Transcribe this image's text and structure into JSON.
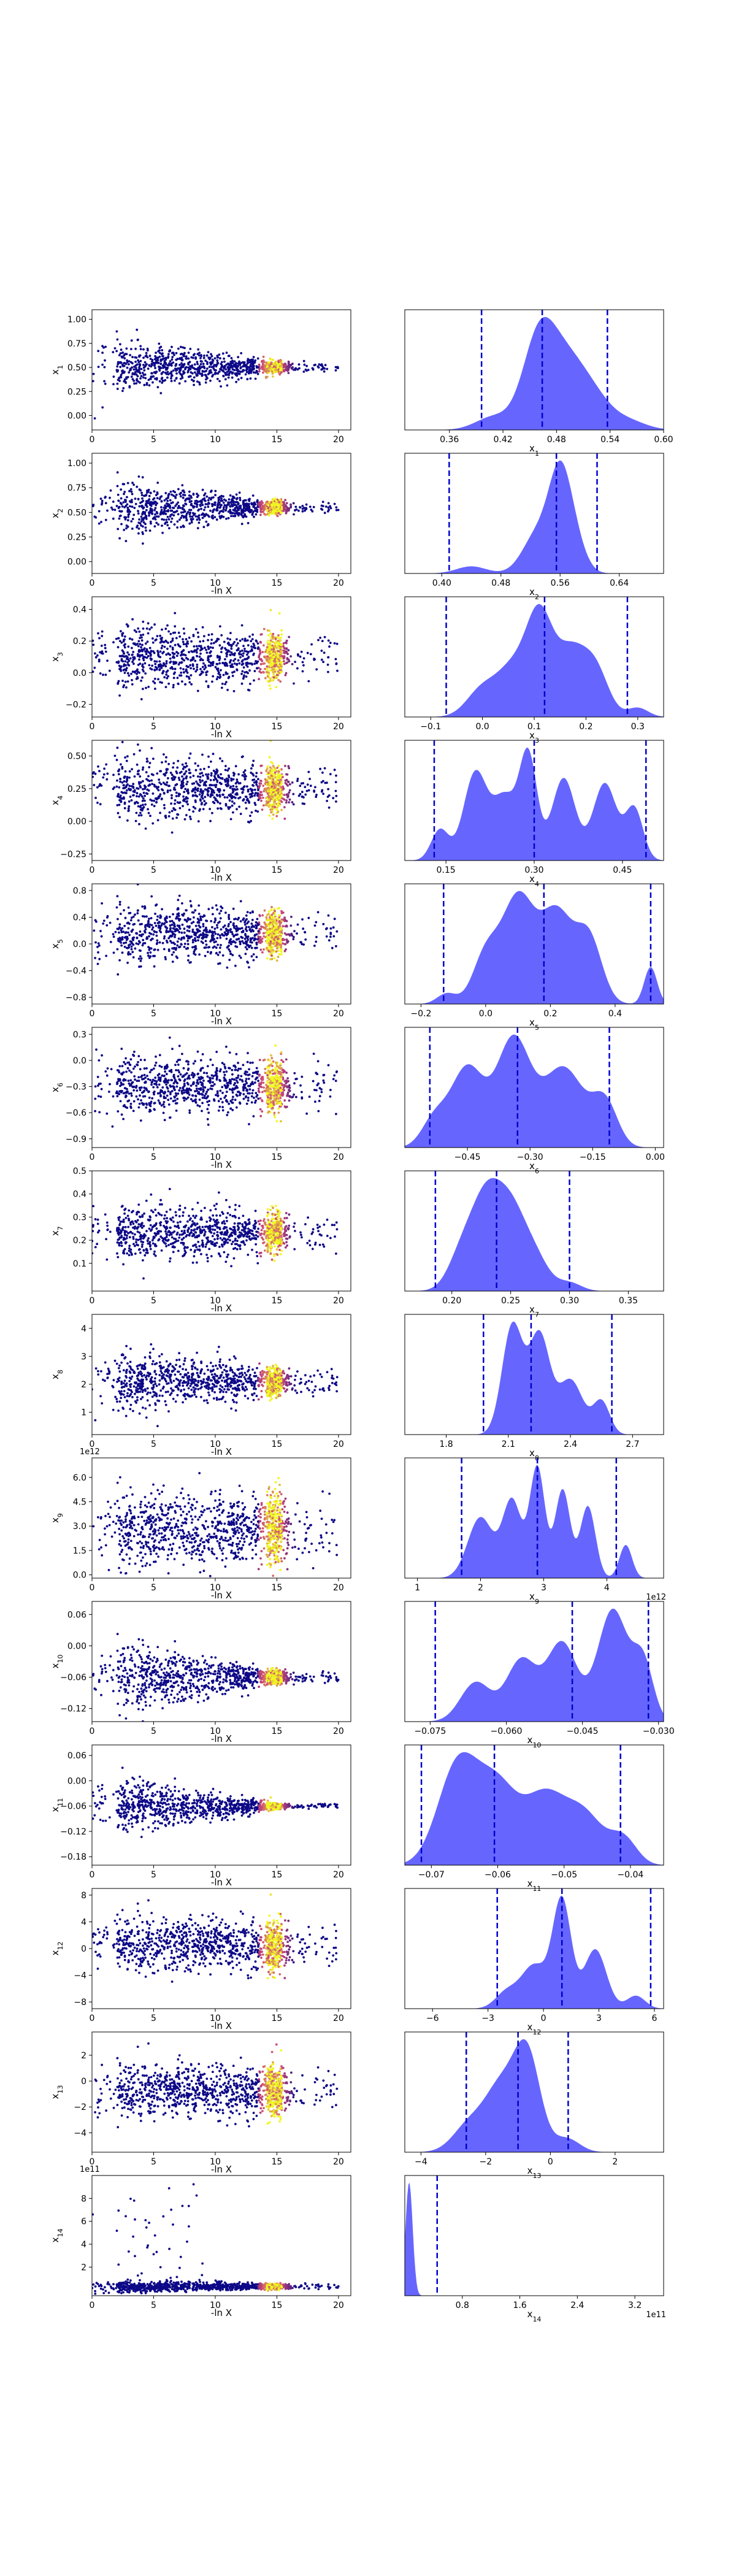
{
  "colors": {
    "scatter_low": "#0d0887",
    "scatter_mid": "#cc4778",
    "scatter_high": "#f0f921",
    "kde_fill": "#3333ff",
    "kde_fill_opacity": 0.75,
    "quantile_line": "#0000cc"
  },
  "chart_data": [
    {
      "type": "scatter",
      "ylabel": "x_1",
      "xlabel": "",
      "xlim": [
        0,
        21
      ],
      "ylim": [
        -0.15,
        1.1
      ],
      "x_ticks": [
        "0",
        "5",
        "10",
        "15",
        "20"
      ],
      "y_ticks": [
        "0.00",
        "0.25",
        "0.50",
        "0.75",
        "1.00"
      ],
      "y_tick_values": [
        0,
        0.25,
        0.5,
        0.75,
        1.0
      ],
      "trend": {
        "center": 0.5,
        "spread_start": 0.28,
        "spread_end": 0.05
      },
      "exponent": ""
    },
    {
      "type": "area",
      "xlabel": "x_1",
      "xlim": [
        0.31,
        0.6
      ],
      "x_ticks": [
        "0.36",
        "0.42",
        "0.48",
        "0.54",
        "0.60"
      ],
      "x_tick_values": [
        0.36,
        0.42,
        0.48,
        0.54,
        0.6
      ],
      "quantiles": [
        0.396,
        0.464,
        0.537
      ],
      "peaks": [
        [
          0.46,
          1.0,
          0.018
        ],
        [
          0.49,
          0.65,
          0.02
        ],
        [
          0.52,
          0.35,
          0.02
        ],
        [
          0.41,
          0.15,
          0.02
        ],
        [
          0.56,
          0.1,
          0.02
        ]
      ],
      "exponent": ""
    },
    {
      "type": "scatter",
      "ylabel": "x_2",
      "xlabel": "-ln X",
      "xlim": [
        0,
        21
      ],
      "ylim": [
        -0.12,
        1.1
      ],
      "x_ticks": [
        "0",
        "5",
        "10",
        "15",
        "20"
      ],
      "y_ticks": [
        "0.00",
        "0.25",
        "0.50",
        "0.75",
        "1.00"
      ],
      "y_tick_values": [
        0,
        0.25,
        0.5,
        0.75,
        1.0
      ],
      "trend": {
        "center": 0.55,
        "spread_start": 0.3,
        "spread_end": 0.05
      },
      "exponent": ""
    },
    {
      "type": "area",
      "xlabel": "x_2",
      "xlim": [
        0.35,
        0.7
      ],
      "x_ticks": [
        "0.40",
        "0.48",
        "0.56",
        "0.64"
      ],
      "x_tick_values": [
        0.4,
        0.48,
        0.56,
        0.64
      ],
      "quantiles": [
        0.41,
        0.555,
        0.61
      ],
      "peaks": [
        [
          0.56,
          1.0,
          0.015
        ],
        [
          0.53,
          0.45,
          0.02
        ],
        [
          0.58,
          0.3,
          0.015
        ],
        [
          0.44,
          0.08,
          0.02
        ]
      ],
      "exponent": ""
    },
    {
      "type": "scatter",
      "ylabel": "x_3",
      "xlabel": "-ln X",
      "xlim": [
        0,
        21
      ],
      "ylim": [
        -0.28,
        0.48
      ],
      "x_ticks": [
        "0",
        "5",
        "10",
        "15",
        "20"
      ],
      "y_ticks": [
        "−0.2",
        "0.0",
        "0.2",
        "0.4"
      ],
      "y_tick_values": [
        -0.2,
        0.0,
        0.2,
        0.4
      ],
      "trend": {
        "center": 0.1,
        "spread_start": 0.22,
        "spread_end": 0.12
      },
      "exponent": ""
    },
    {
      "type": "area",
      "xlabel": "x_3",
      "xlim": [
        -0.15,
        0.35
      ],
      "x_ticks": [
        "−0.1",
        "0.0",
        "0.1",
        "0.2",
        "0.3"
      ],
      "x_tick_values": [
        -0.1,
        0.0,
        0.1,
        0.2,
        0.3
      ],
      "quantiles": [
        -0.07,
        0.12,
        0.28
      ],
      "peaks": [
        [
          0.11,
          1.0,
          0.025
        ],
        [
          0.17,
          0.7,
          0.03
        ],
        [
          0.06,
          0.5,
          0.03
        ],
        [
          0.22,
          0.45,
          0.025
        ],
        [
          0.0,
          0.3,
          0.03
        ],
        [
          0.3,
          0.1,
          0.02
        ]
      ],
      "exponent": ""
    },
    {
      "type": "scatter",
      "ylabel": "x_4",
      "xlabel": "-ln X",
      "xlim": [
        0,
        21
      ],
      "ylim": [
        -0.3,
        0.62
      ],
      "x_ticks": [
        "0",
        "5",
        "10",
        "15",
        "20"
      ],
      "y_ticks": [
        "−0.25",
        "0.00",
        "0.25",
        "0.50"
      ],
      "y_tick_values": [
        -0.25,
        0.0,
        0.25,
        0.5
      ],
      "trend": {
        "center": 0.25,
        "spread_start": 0.25,
        "spread_end": 0.15
      },
      "exponent": ""
    },
    {
      "type": "area",
      "xlabel": "x_4",
      "xlim": [
        0.08,
        0.52
      ],
      "x_ticks": [
        "0.15",
        "0.30",
        "0.45"
      ],
      "x_tick_values": [
        0.15,
        0.3,
        0.45
      ],
      "quantiles": [
        0.13,
        0.3,
        0.49
      ],
      "peaks": [
        [
          0.29,
          1.0,
          0.015
        ],
        [
          0.2,
          0.85,
          0.02
        ],
        [
          0.35,
          0.8,
          0.02
        ],
        [
          0.42,
          0.75,
          0.02
        ],
        [
          0.25,
          0.6,
          0.02
        ],
        [
          0.47,
          0.5,
          0.015
        ],
        [
          0.14,
          0.3,
          0.015
        ]
      ],
      "exponent": ""
    },
    {
      "type": "scatter",
      "ylabel": "x_5",
      "xlabel": "-ln X",
      "xlim": [
        0,
        21
      ],
      "ylim": [
        -0.9,
        0.9
      ],
      "x_ticks": [
        "0",
        "5",
        "10",
        "15",
        "20"
      ],
      "y_ticks": [
        "−0.8",
        "−0.4",
        "0.0",
        "0.4",
        "0.8"
      ],
      "y_tick_values": [
        -0.8,
        -0.4,
        0.0,
        0.4,
        0.8
      ],
      "trend": {
        "center": 0.15,
        "spread_start": 0.45,
        "spread_end": 0.28
      },
      "exponent": ""
    },
    {
      "type": "area",
      "xlabel": "x_5",
      "xlim": [
        -0.25,
        0.55
      ],
      "x_ticks": [
        "−0.2",
        "0.0",
        "0.2",
        "0.4"
      ],
      "x_tick_values": [
        -0.2,
        0.0,
        0.2,
        0.4
      ],
      "quantiles": [
        -0.13,
        0.18,
        0.51
      ],
      "peaks": [
        [
          0.1,
          1.0,
          0.05
        ],
        [
          0.22,
          0.85,
          0.05
        ],
        [
          0.32,
          0.6,
          0.04
        ],
        [
          0.0,
          0.45,
          0.04
        ],
        [
          0.51,
          0.35,
          0.02
        ],
        [
          -0.12,
          0.1,
          0.03
        ]
      ],
      "exponent": ""
    },
    {
      "type": "scatter",
      "ylabel": "x_6",
      "xlabel": "-ln X",
      "xlim": [
        0,
        21
      ],
      "ylim": [
        -1.0,
        0.38
      ],
      "x_ticks": [
        "0",
        "5",
        "10",
        "15",
        "20"
      ],
      "y_ticks": [
        "−0.9",
        "−0.6",
        "−0.3",
        "0.0",
        "0.3"
      ],
      "y_tick_values": [
        -0.9,
        -0.6,
        -0.3,
        0.0,
        0.3
      ],
      "trend": {
        "center": -0.3,
        "spread_start": 0.35,
        "spread_end": 0.25
      },
      "exponent": ""
    },
    {
      "type": "area",
      "xlabel": "x_6",
      "xlim": [
        -0.6,
        0.02
      ],
      "x_ticks": [
        "−0.45",
        "−0.30",
        "−0.15",
        "0.00"
      ],
      "x_tick_values": [
        -0.45,
        -0.3,
        -0.15,
        0.0
      ],
      "quantiles": [
        -0.54,
        -0.33,
        -0.11
      ],
      "peaks": [
        [
          -0.34,
          1.0,
          0.04
        ],
        [
          -0.45,
          0.75,
          0.04
        ],
        [
          -0.22,
          0.75,
          0.05
        ],
        [
          -0.12,
          0.4,
          0.03
        ],
        [
          -0.53,
          0.25,
          0.03
        ]
      ],
      "exponent": ""
    },
    {
      "type": "scatter",
      "ylabel": "x_7",
      "xlabel": "-ln X",
      "xlim": [
        0,
        21
      ],
      "ylim": [
        -0.02,
        0.5
      ],
      "x_ticks": [
        "0",
        "5",
        "10",
        "15",
        "20"
      ],
      "y_ticks": [
        "0.1",
        "0.2",
        "0.3",
        "0.4",
        "0.5"
      ],
      "y_tick_values": [
        0.1,
        0.2,
        0.3,
        0.4,
        0.5
      ],
      "trend": {
        "center": 0.23,
        "spread_start": 0.13,
        "spread_end": 0.07
      },
      "exponent": ""
    },
    {
      "type": "area",
      "xlabel": "x_7",
      "xlim": [
        0.16,
        0.38
      ],
      "x_ticks": [
        "0.20",
        "0.25",
        "0.30",
        "0.35"
      ],
      "x_tick_values": [
        0.2,
        0.25,
        0.3,
        0.35
      ],
      "quantiles": [
        0.186,
        0.238,
        0.3
      ],
      "peaks": [
        [
          0.23,
          1.0,
          0.012
        ],
        [
          0.25,
          0.85,
          0.012
        ],
        [
          0.21,
          0.5,
          0.012
        ],
        [
          0.27,
          0.4,
          0.012
        ],
        [
          0.3,
          0.1,
          0.01
        ]
      ],
      "exponent": ""
    },
    {
      "type": "scatter",
      "ylabel": "x_8",
      "xlabel": "-ln X",
      "xlim": [
        0,
        21
      ],
      "ylim": [
        0.2,
        4.5
      ],
      "x_ticks": [
        "0",
        "5",
        "10",
        "15",
        "20"
      ],
      "y_ticks": [
        "1",
        "2",
        "3",
        "4"
      ],
      "y_tick_values": [
        1,
        2,
        3,
        4
      ],
      "trend": {
        "center": 2.1,
        "spread_start": 1.1,
        "spread_end": 0.4
      },
      "exponent": ""
    },
    {
      "type": "area",
      "xlabel": "x_8",
      "xlim": [
        1.6,
        2.85
      ],
      "x_ticks": [
        "1.8",
        "2.1",
        "2.4",
        "2.7"
      ],
      "x_tick_values": [
        1.8,
        2.1,
        2.4,
        2.7
      ],
      "quantiles": [
        1.98,
        2.21,
        2.6
      ],
      "peaks": [
        [
          2.12,
          1.0,
          0.05
        ],
        [
          2.25,
          0.9,
          0.05
        ],
        [
          2.4,
          0.5,
          0.06
        ],
        [
          2.55,
          0.3,
          0.04
        ]
      ],
      "exponent": ""
    },
    {
      "type": "scatter",
      "ylabel": "x_9",
      "xlabel": "-ln X",
      "xlim": [
        0,
        21
      ],
      "ylim": [
        -0.2,
        7.2
      ],
      "x_ticks": [
        "0",
        "5",
        "10",
        "15",
        "20"
      ],
      "y_ticks": [
        "0.0",
        "1.5",
        "3.0",
        "4.5",
        "6.0"
      ],
      "y_tick_values": [
        0,
        1.5,
        3,
        4.5,
        6
      ],
      "trend": {
        "center": 2.8,
        "spread_start": 2.2,
        "spread_end": 1.8
      },
      "exponent": "1e12"
    },
    {
      "type": "area",
      "xlabel": "x_9",
      "xlim": [
        0.8,
        4.9
      ],
      "x_ticks": [
        "1",
        "2",
        "3",
        "4"
      ],
      "x_tick_values": [
        1,
        2,
        3,
        4
      ],
      "quantiles": [
        1.7,
        2.9,
        4.15
      ],
      "peaks": [
        [
          2.9,
          1.0,
          0.12
        ],
        [
          3.3,
          0.8,
          0.12
        ],
        [
          2.5,
          0.7,
          0.15
        ],
        [
          3.7,
          0.65,
          0.12
        ],
        [
          2.0,
          0.55,
          0.2
        ],
        [
          4.3,
          0.3,
          0.1
        ]
      ],
      "exponent": "1e12"
    },
    {
      "type": "scatter",
      "ylabel": "x_10",
      "xlabel": "-ln X",
      "xlim": [
        0,
        21
      ],
      "ylim": [
        -0.145,
        0.085
      ],
      "x_ticks": [
        "0",
        "5",
        "10",
        "15",
        "20"
      ],
      "y_ticks": [
        "−0.12",
        "−0.06",
        "0.00",
        "0.06"
      ],
      "y_tick_values": [
        -0.12,
        -0.06,
        0.0,
        0.06
      ],
      "trend": {
        "center": -0.06,
        "spread_start": 0.07,
        "spread_end": 0.01
      },
      "exponent": ""
    },
    {
      "type": "area",
      "xlabel": "x_10",
      "xlim": [
        -0.08,
        -0.029
      ],
      "x_ticks": [
        "−0.075",
        "−0.060",
        "−0.045",
        "−0.030"
      ],
      "x_tick_values": [
        -0.075,
        -0.06,
        -0.045,
        -0.03
      ],
      "quantiles": [
        -0.074,
        -0.047,
        -0.032
      ],
      "peaks": [
        [
          -0.039,
          1.0,
          0.003
        ],
        [
          -0.049,
          0.7,
          0.003
        ],
        [
          -0.057,
          0.55,
          0.003
        ],
        [
          -0.066,
          0.35,
          0.003
        ],
        [
          -0.033,
          0.5,
          0.002
        ]
      ],
      "exponent": ""
    },
    {
      "type": "scatter",
      "ylabel": "x_11",
      "xlabel": "-ln X",
      "xlim": [
        0,
        21
      ],
      "ylim": [
        -0.2,
        0.085
      ],
      "x_ticks": [
        "0",
        "5",
        "10",
        "15",
        "20"
      ],
      "y_ticks": [
        "−0.18",
        "−0.12",
        "−0.06",
        "0.00",
        "0.06"
      ],
      "y_tick_values": [
        -0.18,
        -0.12,
        -0.06,
        0.0,
        0.06
      ],
      "trend": {
        "center": -0.06,
        "spread_start": 0.07,
        "spread_end": 0.005
      },
      "exponent": ""
    },
    {
      "type": "area",
      "xlabel": "x_11",
      "xlim": [
        -0.074,
        -0.035
      ],
      "x_ticks": [
        "−0.07",
        "−0.06",
        "−0.05",
        "−0.04"
      ],
      "x_tick_values": [
        -0.07,
        -0.06,
        -0.05,
        -0.04
      ],
      "quantiles": [
        -0.0715,
        -0.0605,
        -0.0415
      ],
      "peaks": [
        [
          -0.066,
          1.0,
          0.003
        ],
        [
          -0.06,
          0.75,
          0.003
        ],
        [
          -0.053,
          0.65,
          0.003
        ],
        [
          -0.047,
          0.5,
          0.003
        ],
        [
          -0.041,
          0.25,
          0.002
        ]
      ],
      "exponent": ""
    },
    {
      "type": "scatter",
      "ylabel": "x_12",
      "xlabel": "-ln X",
      "xlim": [
        0,
        21
      ],
      "ylim": [
        -9,
        9
      ],
      "x_ticks": [
        "0",
        "5",
        "10",
        "15",
        "20"
      ],
      "y_ticks": [
        "−8",
        "−4",
        "0",
        "4",
        "8"
      ],
      "y_tick_values": [
        -8,
        -4,
        0,
        4,
        8
      ],
      "trend": {
        "center": 0.5,
        "spread_start": 3.5,
        "spread_end": 3.2
      },
      "exponent": ""
    },
    {
      "type": "area",
      "xlabel": "x_12",
      "xlim": [
        -7.5,
        6.5
      ],
      "x_ticks": [
        "−6",
        "−3",
        "0",
        "3",
        "6"
      ],
      "x_tick_values": [
        -6,
        -3,
        0,
        3,
        6
      ],
      "quantiles": [
        -2.5,
        1.0,
        5.8
      ],
      "peaks": [
        [
          1.0,
          1.0,
          0.5
        ],
        [
          2.8,
          0.55,
          0.6
        ],
        [
          -0.5,
          0.4,
          0.7
        ],
        [
          -2.0,
          0.15,
          0.6
        ],
        [
          5.0,
          0.12,
          0.5
        ]
      ],
      "exponent": ""
    },
    {
      "type": "scatter",
      "ylabel": "x_13",
      "xlabel": "-ln X",
      "xlim": [
        0,
        21
      ],
      "ylim": [
        -5.5,
        3.8
      ],
      "x_ticks": [
        "0",
        "5",
        "10",
        "15",
        "20"
      ],
      "y_ticks": [
        "−4",
        "−2",
        "0",
        "2"
      ],
      "y_tick_values": [
        -4,
        -2,
        0,
        2
      ],
      "trend": {
        "center": -0.8,
        "spread_start": 2.0,
        "spread_end": 1.6
      },
      "exponent": ""
    },
    {
      "type": "area",
      "xlabel": "x_13",
      "xlim": [
        -4.5,
        3.5
      ],
      "x_ticks": [
        "−4",
        "−2",
        "0",
        "2"
      ],
      "x_tick_values": [
        -4,
        -2,
        0,
        2
      ],
      "quantiles": [
        -2.6,
        -1.0,
        0.55
      ],
      "peaks": [
        [
          -0.7,
          1.0,
          0.4
        ],
        [
          -1.5,
          0.7,
          0.5
        ],
        [
          -2.5,
          0.3,
          0.5
        ],
        [
          0.5,
          0.15,
          0.4
        ]
      ],
      "exponent": ""
    },
    {
      "type": "scatter",
      "ylabel": "x_14",
      "xlabel": "-ln X",
      "xlim": [
        0,
        21
      ],
      "ylim": [
        -0.5,
        10
      ],
      "x_ticks": [
        "0",
        "5",
        "10",
        "15",
        "20"
      ],
      "y_ticks": [
        "2",
        "4",
        "6",
        "8"
      ],
      "y_tick_values": [
        2,
        4,
        6,
        8
      ],
      "trend": {
        "center": 0.3,
        "spread_start": 0.5,
        "spread_end": 0.2,
        "outliers": true
      },
      "exponent": "1e11"
    },
    {
      "type": "area",
      "xlabel": "x_14",
      "xlim": [
        0.0,
        3.6
      ],
      "x_ticks": [
        "0.8",
        "1.6",
        "2.4",
        "3.2"
      ],
      "x_tick_values": [
        0.8,
        1.6,
        2.4,
        3.2
      ],
      "quantiles": [
        0.45
      ],
      "peaks": [
        [
          0.06,
          1.0,
          0.05
        ]
      ],
      "exponent": "1e11"
    }
  ]
}
